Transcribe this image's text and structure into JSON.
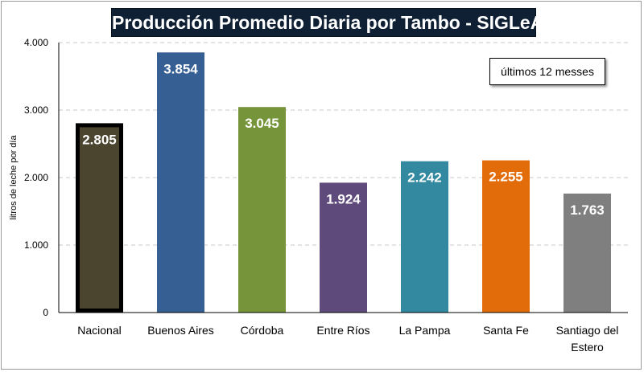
{
  "chart_data": {
    "type": "bar",
    "title": "Producción Promedio Diaria por Tambo - SIGLeA",
    "annotation": "últimos 12 messes",
    "ylabel": "litros de leche por día",
    "xlabel": "",
    "ylim": [
      0,
      4000
    ],
    "yticks": [
      0,
      1000,
      2000,
      3000,
      4000
    ],
    "ytick_labels": [
      "0",
      "1.000",
      "2.000",
      "3.000",
      "4.000"
    ],
    "grid": true,
    "categories": [
      "Nacional",
      "Buenos Aires",
      "Córdoba",
      "Entre Ríos",
      "La Pampa",
      "Santa Fe",
      "Santiago del Estero"
    ],
    "category_lines": [
      [
        "Nacional"
      ],
      [
        "Buenos Aires"
      ],
      [
        "Córdoba"
      ],
      [
        "Entre Ríos"
      ],
      [
        "La Pampa"
      ],
      [
        "Santa Fe"
      ],
      [
        "Santiago del",
        "Estero"
      ]
    ],
    "values": [
      2805,
      3854,
      3045,
      1924,
      2242,
      2255,
      1763
    ],
    "value_labels": [
      "2.805",
      "3.854",
      "3.045",
      "1.924",
      "2.242",
      "2.255",
      "1.763"
    ],
    "colors": [
      "#4b4530",
      "#365f94",
      "#76953a",
      "#5f4b7b",
      "#338aa0",
      "#e36c0a",
      "#7f7f7f"
    ],
    "highlight_index": 0,
    "highlight_border_color": "#000000"
  }
}
